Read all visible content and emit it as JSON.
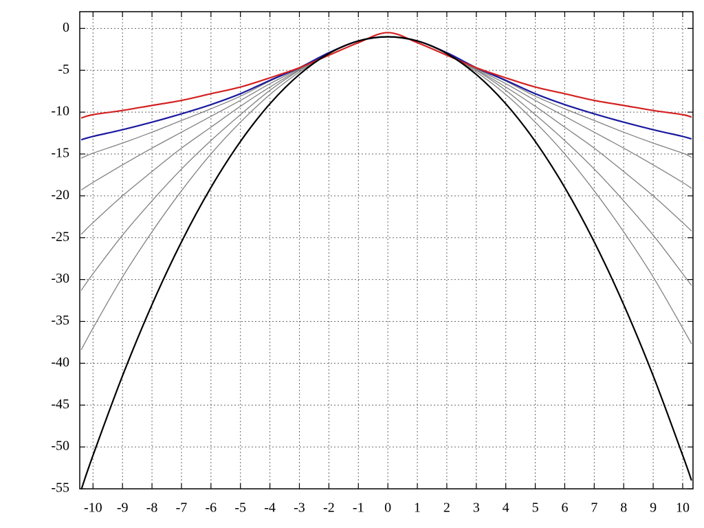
{
  "chart_data": {
    "type": "line",
    "x": [
      -10.4,
      -10,
      -9,
      -8,
      -7,
      -6,
      -5,
      -4,
      -3,
      -2,
      -1,
      0,
      1,
      2,
      3,
      4,
      5,
      6,
      7,
      8,
      9,
      10,
      10.3
    ],
    "series": [
      {
        "color": "#808080",
        "values": [
          -38.4,
          -35.8,
          -29.7,
          -24.3,
          -19.4,
          -15.0,
          -11.2,
          -7.9,
          -5.2,
          -3.0,
          -1.5,
          -1.0,
          -1.5,
          -3.0,
          -5.2,
          -7.9,
          -11.2,
          -15.0,
          -19.4,
          -24.3,
          -29.7,
          -35.8,
          -37.7
        ]
      },
      {
        "color": "#808080",
        "values": [
          -31.3,
          -29.3,
          -24.7,
          -20.6,
          -16.8,
          -13.4,
          -10.3,
          -7.4,
          -5.0,
          -3.0,
          -1.5,
          -1.0,
          -1.5,
          -3.0,
          -5.0,
          -7.4,
          -10.3,
          -13.4,
          -16.8,
          -20.6,
          -24.7,
          -29.3,
          -30.7
        ]
      },
      {
        "color": "#808080",
        "values": [
          -24.6,
          -23.2,
          -20.0,
          -17.1,
          -14.3,
          -11.8,
          -9.3,
          -7.0,
          -4.9,
          -3.0,
          -1.5,
          -1.0,
          -1.5,
          -3.0,
          -4.9,
          -7.0,
          -9.3,
          -11.8,
          -14.3,
          -17.1,
          -20.0,
          -23.2,
          -24.2
        ]
      },
      {
        "color": "#808080",
        "values": [
          -19.3,
          -18.4,
          -16.3,
          -14.3,
          -12.4,
          -10.5,
          -8.6,
          -6.6,
          -4.8,
          -2.9,
          -1.5,
          -1.0,
          -1.5,
          -2.9,
          -4.8,
          -6.6,
          -8.6,
          -10.5,
          -12.4,
          -14.3,
          -16.3,
          -18.4,
          -19.1
        ]
      },
      {
        "color": "#808080",
        "values": [
          -15.5,
          -14.9,
          -13.7,
          -12.4,
          -11.0,
          -9.6,
          -8.1,
          -6.3,
          -4.7,
          -2.9,
          -1.5,
          -1.0,
          -1.5,
          -2.9,
          -4.7,
          -6.3,
          -8.1,
          -9.6,
          -11.0,
          -12.4,
          -13.7,
          -14.9,
          -15.4
        ]
      },
      {
        "color": "#1a1aa0",
        "values": [
          -13.3,
          -12.9,
          -12.1,
          -11.2,
          -10.2,
          -9.1,
          -7.8,
          -6.2,
          -4.7,
          -2.9,
          -1.5,
          -1.0,
          -1.5,
          -2.9,
          -4.7,
          -6.2,
          -7.8,
          -9.1,
          -10.2,
          -11.2,
          -12.1,
          -12.9,
          -13.2
        ]
      },
      {
        "color": "#d42020",
        "values": [
          -10.7,
          -10.3,
          -9.8,
          -9.2,
          -8.6,
          -7.8,
          -7.0,
          -5.9,
          -4.7,
          -3.2,
          -1.7,
          -0.5,
          -1.7,
          -3.2,
          -4.7,
          -5.9,
          -7.0,
          -7.8,
          -8.6,
          -9.2,
          -9.8,
          -10.3,
          -10.6
        ]
      },
      {
        "color": "#000000",
        "values": [
          -55.1,
          -51,
          -41.5,
          -33,
          -25.5,
          -19,
          -13.5,
          -9,
          -5.5,
          -3,
          -1.5,
          -1,
          -1.5,
          -3,
          -5.5,
          -9,
          -13.5,
          -19,
          -25.5,
          -33,
          -41.5,
          -51,
          -54.0
        ]
      }
    ],
    "xlim": [
      -10.45,
      10.35
    ],
    "xticks": [
      -10,
      -9,
      -8,
      -7,
      -6,
      -5,
      -4,
      -3,
      -2,
      -1,
      0,
      1,
      2,
      3,
      4,
      5,
      6,
      7,
      8,
      9,
      10
    ],
    "ylim": [
      -55,
      2
    ],
    "yticks": [
      0,
      -5,
      -10,
      -15,
      -20,
      -25,
      -30,
      -35,
      -40,
      -45,
      -50,
      -55
    ],
    "grid": true
  }
}
